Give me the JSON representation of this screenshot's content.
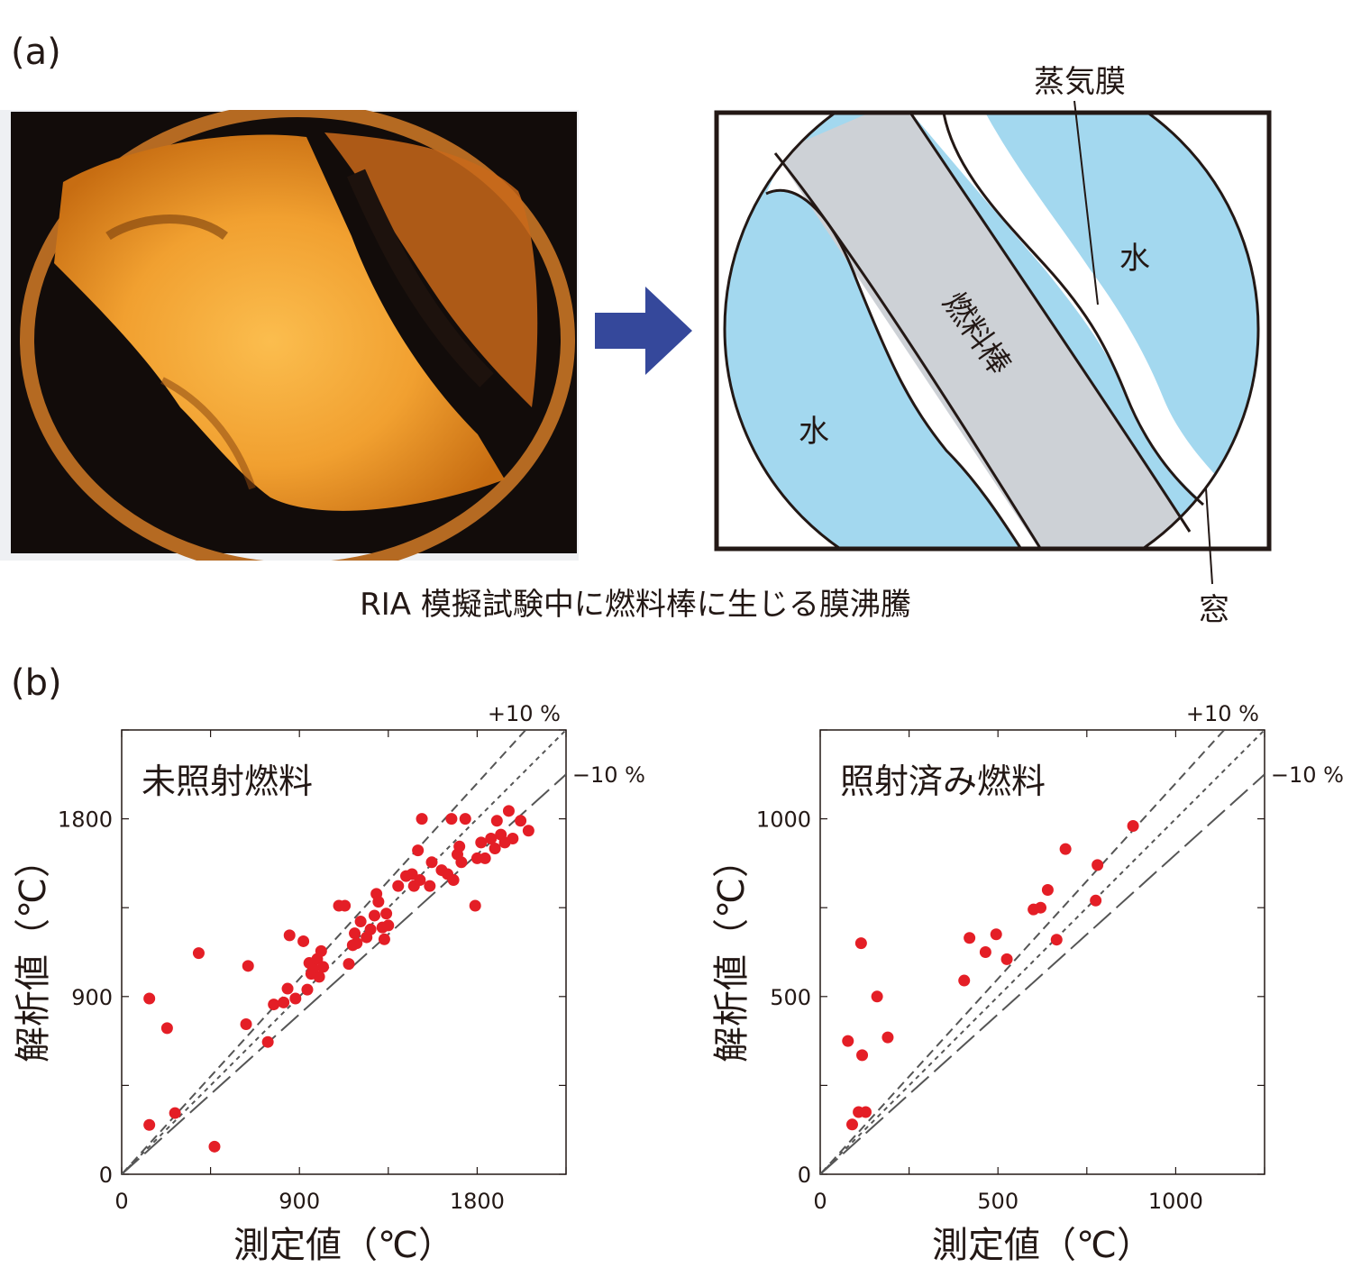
{
  "panel_a": {
    "label": "(a)",
    "caption": "RIA 模擬試験中に燃料棒に生じる膜沸騰",
    "schematic": {
      "label_vapor_film": "蒸気膜",
      "label_water_left": "水",
      "label_water_right": "水",
      "label_fuel_rod": "燃料棒",
      "label_window": "窓"
    },
    "colors": {
      "water": "#a3d8ef",
      "fuel_rod": "#cdd1d6",
      "arrow": "#35489b",
      "photo_glow": "#f5a32d"
    }
  },
  "panel_b": {
    "label": "(b)"
  },
  "chart_data": [
    {
      "type": "scatter",
      "title": "未照射燃料",
      "xlabel": "測定値（℃）",
      "ylabel": "解析値（℃）",
      "xlim": [
        0,
        2250
      ],
      "ylim": [
        0,
        2250
      ],
      "xticks": [
        0,
        900,
        1800
      ],
      "yticks": [
        0,
        900,
        1800
      ],
      "reference_lines": [
        {
          "label": "+10 %",
          "slope": 1.1,
          "style": "dashed"
        },
        {
          "slope": 1.0,
          "style": "dotted"
        },
        {
          "label": "−10 %",
          "slope": 0.9,
          "style": "long-dash"
        }
      ],
      "marker_color": "#e41e26",
      "points": [
        [
          140,
          890
        ],
        [
          140,
          250
        ],
        [
          230,
          740
        ],
        [
          270,
          310
        ],
        [
          390,
          1120
        ],
        [
          470,
          140
        ],
        [
          630,
          760
        ],
        [
          640,
          1055
        ],
        [
          740,
          670
        ],
        [
          770,
          860
        ],
        [
          820,
          870
        ],
        [
          840,
          940
        ],
        [
          850,
          1210
        ],
        [
          880,
          890
        ],
        [
          920,
          1180
        ],
        [
          940,
          935
        ],
        [
          950,
          1070
        ],
        [
          960,
          1015
        ],
        [
          970,
          1040
        ],
        [
          990,
          1090
        ],
        [
          1000,
          1000
        ],
        [
          1010,
          1130
        ],
        [
          1020,
          1050
        ],
        [
          1100,
          1360
        ],
        [
          1130,
          1360
        ],
        [
          1150,
          1065
        ],
        [
          1170,
          1160
        ],
        [
          1180,
          1220
        ],
        [
          1190,
          1170
        ],
        [
          1210,
          1280
        ],
        [
          1240,
          1200
        ],
        [
          1260,
          1240
        ],
        [
          1280,
          1310
        ],
        [
          1290,
          1420
        ],
        [
          1300,
          1380
        ],
        [
          1320,
          1250
        ],
        [
          1330,
          1190
        ],
        [
          1340,
          1320
        ],
        [
          1350,
          1260
        ],
        [
          1400,
          1460
        ],
        [
          1440,
          1510
        ],
        [
          1470,
          1520
        ],
        [
          1480,
          1460
        ],
        [
          1500,
          1640
        ],
        [
          1510,
          1490
        ],
        [
          1520,
          1800
        ],
        [
          1560,
          1460
        ],
        [
          1570,
          1580
        ],
        [
          1620,
          1540
        ],
        [
          1650,
          1520
        ],
        [
          1670,
          1800
        ],
        [
          1680,
          1490
        ],
        [
          1700,
          1620
        ],
        [
          1710,
          1660
        ],
        [
          1720,
          1580
        ],
        [
          1740,
          1800
        ],
        [
          1790,
          1360
        ],
        [
          1800,
          1600
        ],
        [
          1820,
          1680
        ],
        [
          1840,
          1600
        ],
        [
          1870,
          1700
        ],
        [
          1890,
          1650
        ],
        [
          1900,
          1790
        ],
        [
          1920,
          1720
        ],
        [
          1940,
          1680
        ],
        [
          1960,
          1840
        ],
        [
          1980,
          1700
        ],
        [
          2020,
          1790
        ],
        [
          2060,
          1740
        ]
      ]
    },
    {
      "type": "scatter",
      "title": "照射済み燃料",
      "xlabel": "測定値（℃）",
      "ylabel": "解析値（℃）",
      "xlim": [
        0,
        1250
      ],
      "ylim": [
        0,
        1250
      ],
      "xticks": [
        0,
        500,
        1000
      ],
      "yticks": [
        0,
        500,
        1000
      ],
      "reference_lines": [
        {
          "label": "+10 %",
          "slope": 1.1,
          "style": "dashed"
        },
        {
          "slope": 1.0,
          "style": "dotted"
        },
        {
          "label": "−10 %",
          "slope": 0.9,
          "style": "long-dash"
        }
      ],
      "marker_color": "#e41e26",
      "points": [
        [
          78,
          375
        ],
        [
          90,
          140
        ],
        [
          108,
          175
        ],
        [
          115,
          650
        ],
        [
          118,
          335
        ],
        [
          128,
          175
        ],
        [
          160,
          500
        ],
        [
          190,
          385
        ],
        [
          405,
          545
        ],
        [
          420,
          665
        ],
        [
          465,
          625
        ],
        [
          495,
          675
        ],
        [
          525,
          605
        ],
        [
          600,
          745
        ],
        [
          620,
          750
        ],
        [
          640,
          800
        ],
        [
          665,
          660
        ],
        [
          690,
          915
        ],
        [
          780,
          870
        ],
        [
          775,
          770
        ],
        [
          880,
          980
        ]
      ]
    }
  ]
}
